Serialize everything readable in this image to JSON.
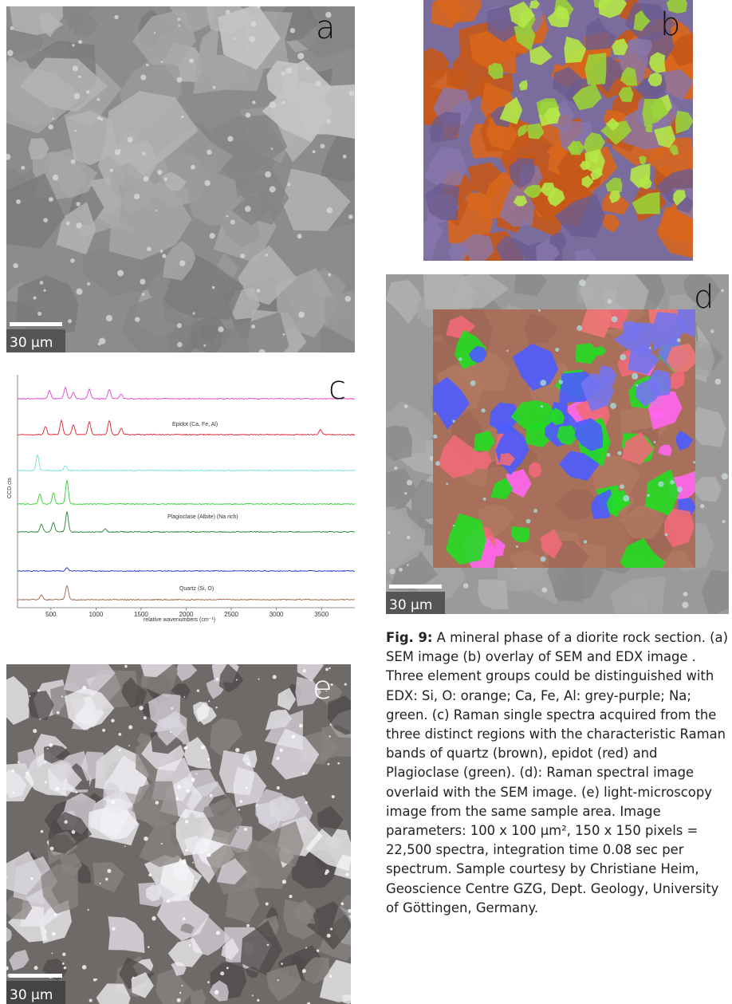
{
  "panels": {
    "a": {
      "label": "a",
      "scale_bar": "30 µm"
    },
    "b": {
      "label": "b"
    },
    "c": {
      "label": "c",
      "y_axis_label": "CCD cts",
      "x_axis_label": "relative wavenumbers (cm⁻¹)",
      "xlim": [
        130,
        3870
      ],
      "xticks": [
        500,
        1000,
        1500,
        2000,
        2500,
        3000,
        3500
      ],
      "annotations": [
        "Epidot (Ca, Fe, Al)",
        "Plagioclase (Albite) (Na rich)",
        "Quartz (Si, O)"
      ]
    },
    "d": {
      "label": "d",
      "scale_bar": "30 µm"
    },
    "e": {
      "label": "e",
      "scale_bar": "30 µm"
    }
  },
  "caption": {
    "label": "Fig. 9:",
    "text": "A mineral phase of a diorite rock section. (a) SEM image (b) overlay of SEM and EDX image . Three element groups could be distinguished with EDX: Si, O: orange; Ca, Fe, Al: grey-purple; Na; green. (c) Raman single spectra acquired from the three distinct regions with the characteristic Raman bands of quartz (brown), epidot (red) and Plagioclase (green). (d): Raman spectral image overlaid with the SEM image. (e) light-microscopy image from the same sample area. Image parameters: 100 x 100 µm², 150 x 150 pixels = 22,500 spectra, integration time 0.08 sec per spectrum. Sample courtesy by Christiane Heim, Geoscience Centre GZG, Dept. Geology, University of Göttingen, Germany."
  }
}
